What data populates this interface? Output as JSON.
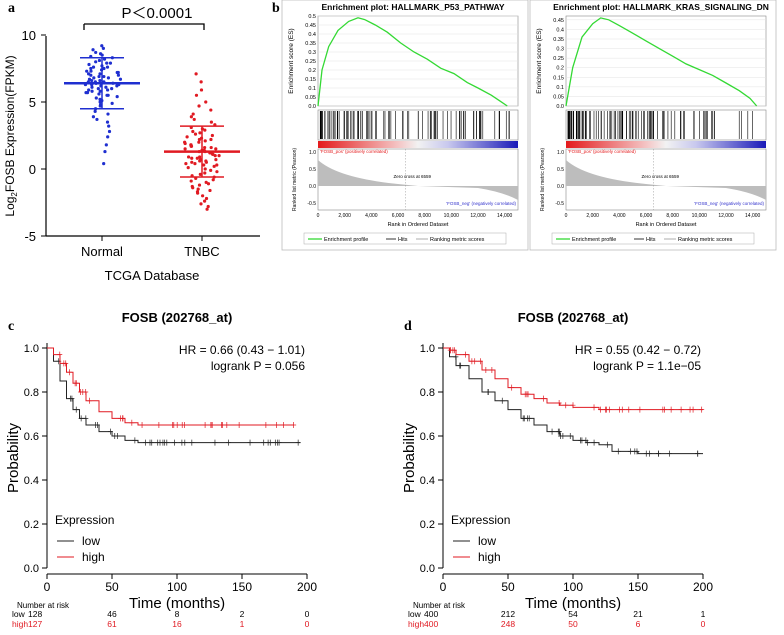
{
  "panels": {
    "a": {
      "letter": "a",
      "pvalue": "P＜0.0001",
      "ylabel_pre": "Log",
      "ylabel_sub": "2",
      "ylabel_post": "FOSB Expression(FPKM)",
      "xlabel": "TCGA Database",
      "yticks": [
        "10",
        "5",
        "0",
        "-5"
      ],
      "colors": {
        "normal": "#1f2fd0",
        "tnbc": "#e01a22"
      }
    },
    "b": {
      "letter": "b",
      "hits_label": "Hits",
      "plots": [
        {
          "title": "Enrichment plot: HALLMARK_P53_PATHWAY",
          "es_label": "Enrichment score (ES)",
          "metric_label": "Ranked list metric (Pearson)",
          "xlabel": "Rank in Ordered Dataset",
          "pos_label": "'FOSB_pos' (positively correlated)",
          "neg_label": "'FOSB_neg' (negatively correlated)",
          "zero_cross": "Zero cross at 6559",
          "es_ticks": [
            "0.5",
            "0.45",
            "0.4",
            "0.35",
            "0.3",
            "0.25",
            "0.2",
            "0.15",
            "0.1",
            "0.05",
            "0.0"
          ],
          "metric_ticks": [
            "1.0",
            "0.5",
            "0.0",
            "-0.5"
          ],
          "x_ticks": [
            "0",
            "2,000",
            "4,000",
            "6,000",
            "8,000",
            "10,000",
            "12,000",
            "14,000"
          ],
          "legend": [
            "Enrichment profile",
            "Hits",
            "Ranking metric scores"
          ]
        },
        {
          "title": "Enrichment plot: HALLMARK_KRAS_SIGNALING_DN",
          "es_label": "Enrichment score (ES)",
          "metric_label": "Ranked list metric (Pearson)",
          "xlabel": "Rank in Ordered Dataset",
          "pos_label": "'FOSB_pos' (positively correlated)",
          "neg_label": "'FOSB_neg' (negatively correlated)",
          "zero_cross": "Zero cross at 6559",
          "es_ticks": [
            "0.45",
            "0.4",
            "0.35",
            "0.3",
            "0.25",
            "0.2",
            "0.15",
            "0.1",
            "0.05",
            "0.0"
          ],
          "metric_ticks": [
            "1.0",
            "0.5",
            "0.0",
            "-0.5"
          ],
          "x_ticks": [
            "0",
            "2,000",
            "4,000",
            "6,000",
            "8,000",
            "10,000",
            "12,000",
            "14,000"
          ],
          "legend": [
            "Enrichment profile",
            "Hits",
            "Ranking metric scores"
          ]
        }
      ]
    },
    "c": {
      "letter": "c",
      "title": "FOSB (202768_at)",
      "hr": "HR = 0.66 (0.43 − 1.01)",
      "logrank": "logrank P = 0.056",
      "ylabel": "Probability",
      "xlabel": "Time (months)",
      "yticks": [
        "1.0",
        "0.8",
        "0.6",
        "0.4",
        "0.2",
        "0.0"
      ],
      "xticks": [
        "0",
        "50",
        "100",
        "150",
        "200"
      ],
      "legend_title": "Expression",
      "legend": [
        "low",
        "high"
      ],
      "risk_title": "Number at risk",
      "risk_low_label": "low",
      "risk_high_label": "high",
      "risk_low": [
        "128",
        "46",
        "8",
        "2",
        "0"
      ],
      "risk_high": [
        "127",
        "61",
        "16",
        "1",
        "0"
      ]
    },
    "d": {
      "letter": "d",
      "title": "FOSB (202768_at)",
      "hr": "HR = 0.55 (0.42 − 0.72)",
      "logrank": "logrank P = 1.1e−05",
      "ylabel": "Probability",
      "xlabel": "Time (months)",
      "yticks": [
        "1.0",
        "0.8",
        "0.6",
        "0.4",
        "0.2",
        "0.0"
      ],
      "xticks": [
        "0",
        "50",
        "100",
        "150",
        "200"
      ],
      "legend_title": "Expression",
      "legend": [
        "low",
        "high"
      ],
      "risk_title": "Number at risk",
      "risk_low_label": "low",
      "risk_high_label": "high",
      "risk_low": [
        "400",
        "212",
        "54",
        "21",
        "1"
      ],
      "risk_high": [
        "400",
        "248",
        "50",
        "6",
        "0"
      ]
    }
  },
  "chart_data": [
    {
      "type": "scatter",
      "panel": "a",
      "title": "",
      "xlabel": "TCGA Database",
      "ylabel": "Log2FOSB Expression(FPKM)",
      "ylim": [
        -5,
        10
      ],
      "categories": [
        "Normal",
        "TNBC"
      ],
      "series": [
        {
          "name": "Normal",
          "mean": 6.4,
          "color": "#1f2fd0",
          "values": [
            9.2,
            9.0,
            8.9,
            8.7,
            8.6,
            8.5,
            8.4,
            8.3,
            8.2,
            8.1,
            8.0,
            7.9,
            7.9,
            7.8,
            7.7,
            7.6,
            7.6,
            7.5,
            7.5,
            7.4,
            7.3,
            7.3,
            7.2,
            7.2,
            7.1,
            7.1,
            7.0,
            7.0,
            6.9,
            6.9,
            6.8,
            6.8,
            6.7,
            6.7,
            6.6,
            6.6,
            6.5,
            6.5,
            6.5,
            6.4,
            6.4,
            6.4,
            6.3,
            6.3,
            6.3,
            6.2,
            6.2,
            6.1,
            6.1,
            6.0,
            6.0,
            5.9,
            5.9,
            5.8,
            5.8,
            5.7,
            5.7,
            5.6,
            5.5,
            5.5,
            5.4,
            5.3,
            5.2,
            5.1,
            5.0,
            4.9,
            4.8,
            4.7,
            4.5,
            4.3,
            4.1,
            3.9,
            3.7,
            3.5,
            3.2,
            2.8,
            2.4,
            1.8,
            1.3,
            0.4
          ]
        },
        {
          "name": "TNBC",
          "mean": 1.3,
          "color": "#e01a22",
          "values": [
            7.1,
            6.5,
            5.9,
            5.5,
            5.0,
            4.7,
            4.4,
            4.1,
            3.9,
            3.7,
            3.5,
            3.3,
            3.1,
            3.0,
            2.9,
            2.8,
            2.7,
            2.6,
            2.5,
            2.4,
            2.3,
            2.2,
            2.2,
            2.1,
            2.0,
            2.0,
            1.9,
            1.8,
            1.8,
            1.7,
            1.7,
            1.6,
            1.6,
            1.5,
            1.5,
            1.4,
            1.4,
            1.3,
            1.3,
            1.2,
            1.2,
            1.1,
            1.1,
            1.0,
            1.0,
            0.9,
            0.9,
            0.8,
            0.8,
            0.7,
            0.7,
            0.6,
            0.6,
            0.5,
            0.5,
            0.4,
            0.4,
            0.3,
            0.3,
            0.2,
            0.1,
            0.0,
            -0.1,
            -0.2,
            -0.3,
            -0.4,
            -0.5,
            -0.6,
            -0.7,
            -0.8,
            -0.9,
            -1.0,
            -1.1,
            -1.2,
            -1.3,
            -1.4,
            -1.5,
            -1.6,
            -1.7,
            -1.8,
            -2.0,
            -2.2,
            -2.4,
            -2.6,
            -2.8,
            -3.0
          ]
        }
      ]
    },
    {
      "type": "line",
      "panel": "b1",
      "title": "Enrichment plot: HALLMARK_P53_PATHWAY",
      "xlabel": "Rank in Ordered Dataset",
      "ylabel": "Enrichment score (ES)",
      "ylim": [
        0,
        0.5
      ],
      "xlim": [
        0,
        15000
      ],
      "x": [
        0,
        300,
        800,
        1500,
        2300,
        3000,
        3500,
        4300,
        5200,
        6200,
        7200,
        8200,
        9200,
        10200,
        11200,
        12000,
        13000,
        13600,
        14200
      ],
      "values": [
        0.0,
        0.2,
        0.33,
        0.42,
        0.47,
        0.49,
        0.48,
        0.45,
        0.41,
        0.35,
        0.3,
        0.26,
        0.21,
        0.18,
        0.13,
        0.1,
        0.06,
        0.03,
        0.0
      ]
    },
    {
      "type": "line",
      "panel": "b2",
      "title": "Enrichment plot: HALLMARK_KRAS_SIGNALING_DN",
      "xlabel": "Rank in Ordered Dataset",
      "ylabel": "Enrichment score (ES)",
      "ylim": [
        0,
        0.47
      ],
      "xlim": [
        0,
        15000
      ],
      "x": [
        0,
        500,
        1200,
        2000,
        2600,
        3200,
        4000,
        5000,
        6000,
        7000,
        8000,
        9000,
        10000,
        11000,
        12000,
        13000,
        13800,
        14300
      ],
      "values": [
        0.0,
        0.2,
        0.36,
        0.43,
        0.46,
        0.45,
        0.42,
        0.38,
        0.34,
        0.3,
        0.26,
        0.22,
        0.19,
        0.16,
        0.12,
        0.08,
        0.04,
        0.0
      ]
    },
    {
      "type": "line",
      "panel": "c",
      "title": "FOSB (202768_at)",
      "xlabel": "Time (months)",
      "ylabel": "Probability",
      "ylim": [
        0,
        1
      ],
      "xlim": [
        0,
        200
      ],
      "series": [
        {
          "name": "low",
          "color": "#222222",
          "x": [
            0,
            5,
            10,
            15,
            20,
            25,
            30,
            40,
            50,
            60,
            70,
            80,
            90,
            100,
            150,
            195
          ],
          "values": [
            1.0,
            0.94,
            0.85,
            0.77,
            0.72,
            0.68,
            0.65,
            0.62,
            0.6,
            0.58,
            0.57,
            0.57,
            0.57,
            0.57,
            0.57,
            0.57
          ]
        },
        {
          "name": "high",
          "color": "#e01a22",
          "x": [
            0,
            5,
            10,
            15,
            20,
            25,
            30,
            40,
            50,
            60,
            70,
            80,
            100,
            150,
            190
          ],
          "values": [
            1.0,
            0.97,
            0.93,
            0.89,
            0.84,
            0.8,
            0.76,
            0.71,
            0.68,
            0.66,
            0.65,
            0.65,
            0.65,
            0.65,
            0.65
          ]
        }
      ]
    },
    {
      "type": "line",
      "panel": "d",
      "title": "FOSB (202768_at)",
      "xlabel": "Time (months)",
      "ylabel": "Probability",
      "ylim": [
        0,
        1
      ],
      "xlim": [
        0,
        200
      ],
      "series": [
        {
          "name": "low",
          "color": "#222222",
          "x": [
            0,
            5,
            10,
            20,
            30,
            40,
            50,
            60,
            70,
            80,
            90,
            100,
            110,
            120,
            130,
            150,
            200
          ],
          "values": [
            1.0,
            0.96,
            0.92,
            0.86,
            0.8,
            0.76,
            0.72,
            0.68,
            0.65,
            0.62,
            0.6,
            0.58,
            0.57,
            0.56,
            0.53,
            0.52,
            0.52
          ]
        },
        {
          "name": "high",
          "color": "#e01a22",
          "x": [
            0,
            5,
            10,
            20,
            30,
            40,
            50,
            60,
            70,
            80,
            90,
            100,
            120,
            150,
            200
          ],
          "values": [
            1.0,
            0.99,
            0.97,
            0.94,
            0.9,
            0.86,
            0.82,
            0.79,
            0.77,
            0.75,
            0.74,
            0.73,
            0.72,
            0.72,
            0.72
          ]
        }
      ]
    }
  ]
}
